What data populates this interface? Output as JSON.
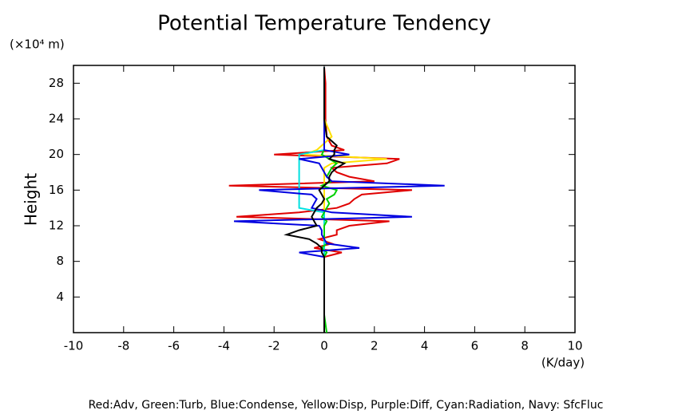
{
  "chart_data": {
    "type": "line",
    "title": "Potential Temperature Tendency",
    "y_unit": "(×10⁴ m)",
    "y_label": "Height",
    "x_unit": "(K/day)",
    "note": "Red:Adv, Green:Turb, Blue:Condense, Yellow:Disp, Purple:Diff, Cyan:Radiation, Navy: SfcFluc",
    "xlim": [
      -10,
      10
    ],
    "xticks": [
      -10,
      -8,
      -6,
      -4,
      -2,
      0,
      2,
      4,
      6,
      8,
      10
    ],
    "ylim": [
      0,
      30
    ],
    "yticks": [
      4,
      8,
      12,
      16,
      20,
      24,
      28
    ],
    "y": [
      0,
      2,
      4,
      6,
      8,
      8.5,
      9,
      9.5,
      10,
      10.5,
      11,
      11.5,
      12,
      12.5,
      13,
      13.5,
      14,
      14.5,
      15,
      15.5,
      16,
      16.5,
      17,
      17.5,
      18,
      18.5,
      19,
      19.5,
      20,
      20.5,
      21,
      22,
      24,
      26,
      28,
      29.8
    ],
    "series": [
      {
        "color": "#e00000",
        "values": [
          0,
          0,
          0,
          0,
          0,
          0,
          0.7,
          -0.4,
          0.3,
          -0.2,
          0.5,
          0.5,
          1.0,
          2.6,
          -3.5,
          -1.0,
          0.5,
          1.0,
          1.2,
          1.5,
          3.5,
          -3.8,
          2.0,
          1.0,
          0.5,
          0.3,
          2.5,
          3.0,
          -2.0,
          0.8,
          0.3,
          0.1,
          0.05,
          0.05,
          0.05,
          0
        ]
      },
      {
        "color": "#ffe000",
        "values": [
          0,
          0,
          0,
          0,
          0,
          0,
          0,
          0,
          0,
          0,
          0,
          0,
          0,
          0,
          0,
          0,
          0,
          0,
          0,
          0,
          0,
          0,
          0,
          0,
          0,
          0,
          0.3,
          2.5,
          -0.8,
          -0.3,
          -0.1,
          0.3,
          0,
          0,
          0,
          0
        ]
      },
      {
        "color": "#00e0e0",
        "values": [
          0,
          0,
          0,
          0,
          0,
          0,
          0,
          0,
          0,
          0,
          0,
          0,
          0,
          0,
          0,
          0,
          -1,
          -1,
          -1,
          -1,
          -1,
          -1,
          -1,
          -1,
          -1,
          -1,
          -1,
          -1,
          -1,
          0,
          0,
          0,
          0,
          0,
          0,
          0
        ]
      },
      {
        "color": "#00d000",
        "values": [
          0.1,
          0,
          0,
          0,
          0,
          0,
          0.1,
          -0.1,
          0.1,
          0,
          0,
          0,
          0,
          0.1,
          -0.1,
          0,
          0.1,
          0.2,
          0.1,
          0.4,
          0.5,
          -0.1,
          0.3,
          0.1,
          0.2,
          0.3,
          0.5,
          0.2,
          -0.1,
          0,
          0,
          0,
          0,
          0,
          0,
          0
        ]
      },
      {
        "color": "#0000e0",
        "values": [
          0,
          0,
          0,
          0,
          0,
          0,
          -1.0,
          1.4,
          0.1,
          0,
          -0.1,
          -0.1,
          -0.2,
          -3.6,
          3.5,
          0.3,
          -0.5,
          -0.4,
          -0.3,
          -0.5,
          -2.6,
          4.8,
          0.3,
          0.1,
          0,
          -0.1,
          -0.2,
          -1.0,
          1.0,
          0,
          0,
          0,
          0,
          0,
          0,
          0
        ]
      },
      {
        "color": "#000000",
        "values": [
          0,
          0,
          0,
          0,
          0,
          0,
          -0.1,
          -0.1,
          -0.3,
          -0.6,
          -1.5,
          -1.0,
          -0.3,
          -0.4,
          -0.5,
          -0.4,
          -0.3,
          -0.1,
          0,
          -0.1,
          -0.2,
          0,
          0.2,
          0.2,
          0.3,
          0.5,
          0.8,
          0.2,
          0.4,
          0.4,
          0.5,
          0.1,
          0,
          0,
          0,
          0
        ]
      }
    ]
  }
}
